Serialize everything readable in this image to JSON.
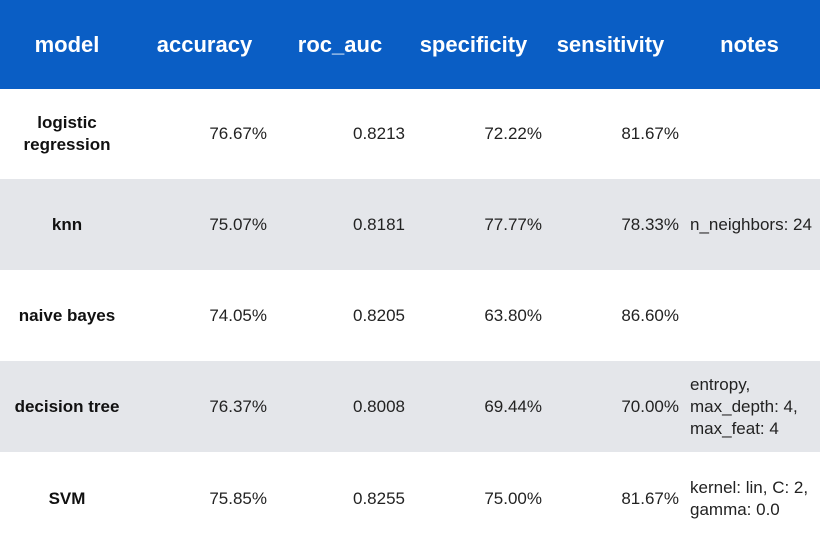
{
  "table": {
    "headers": {
      "model": "model",
      "accuracy": "accuracy",
      "roc_auc": "roc_auc",
      "specificity": "specificity",
      "sensitivity": "sensitivity",
      "notes": "notes"
    },
    "rows": [
      {
        "model": "logistic regression",
        "accuracy": "76.67%",
        "roc_auc": "0.8213",
        "specificity": "72.22%",
        "sensitivity": "81.67%",
        "notes": ""
      },
      {
        "model": "knn",
        "accuracy": "75.07%",
        "roc_auc": "0.8181",
        "specificity": "77.77%",
        "sensitivity": "78.33%",
        "notes": "n_neighbors: 24"
      },
      {
        "model": "naive bayes",
        "accuracy": "74.05%",
        "roc_auc": "0.8205",
        "specificity": "63.80%",
        "sensitivity": "86.60%",
        "notes": ""
      },
      {
        "model": "decision tree",
        "accuracy": "76.37%",
        "roc_auc": "0.8008",
        "specificity": "69.44%",
        "sensitivity": "70.00%",
        "notes": "entropy, max_depth: 4, max_feat: 4"
      },
      {
        "model": "SVM",
        "accuracy": "75.85%",
        "roc_auc": "0.8255",
        "specificity": "75.00%",
        "sensitivity": "81.67%",
        "notes": "kernel: lin, C: 2, gamma: 0.0"
      }
    ]
  },
  "colors": {
    "header_bg": "#0a5ec5",
    "header_text": "#ffffff",
    "stripe_bg": "#e4e6ea",
    "row_bg": "#ffffff"
  }
}
